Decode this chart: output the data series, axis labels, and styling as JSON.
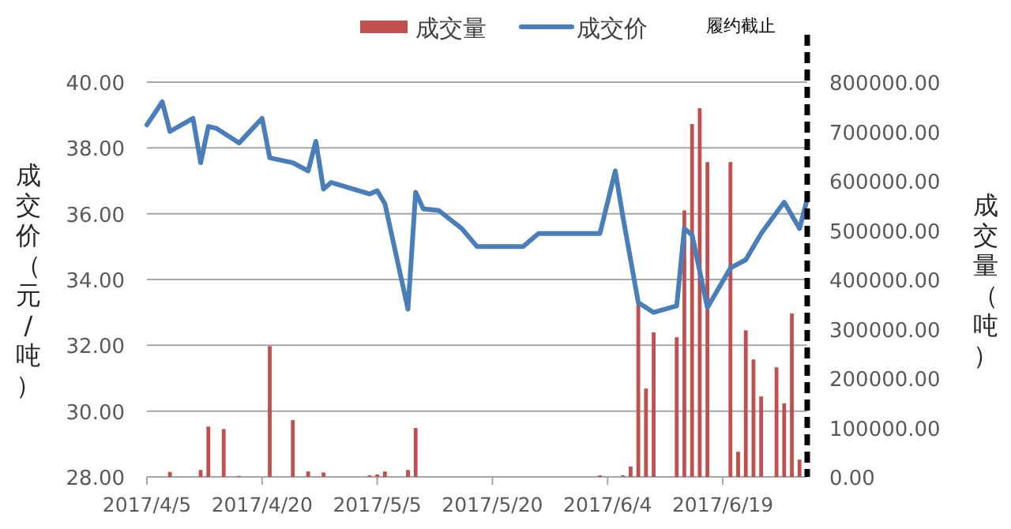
{
  "chart_data": {
    "type": "line",
    "ylabel": "成交价（元/吨）",
    "y2label": "成交量（吨）",
    "legend": "top",
    "grid": "y",
    "xlim": [
      "2017-04-05",
      "2017-06-30"
    ],
    "xticks": [
      {
        "value": "2017-04-05",
        "label": "2017/4/5"
      },
      {
        "value": "2017-04-20",
        "label": "2017/4/20"
      },
      {
        "value": "2017-05-05",
        "label": "2017/5/5"
      },
      {
        "value": "2017-05-20",
        "label": "2017/5/20"
      },
      {
        "value": "2017-06-04",
        "label": "2017/6/4"
      },
      {
        "value": "2017-06-19",
        "label": "2017/6/19"
      }
    ],
    "ylim": [
      28,
      40
    ],
    "yticks": [
      {
        "value": 28,
        "label": "28.00"
      },
      {
        "value": 30,
        "label": "30.00"
      },
      {
        "value": 32,
        "label": "32.00"
      },
      {
        "value": 34,
        "label": "34.00"
      },
      {
        "value": 36,
        "label": "36.00"
      },
      {
        "value": 38,
        "label": "38.00"
      },
      {
        "value": 40,
        "label": "40.00"
      }
    ],
    "y2lim": [
      0,
      800000
    ],
    "y2ticks": [
      {
        "value": 0,
        "label": "0.00"
      },
      {
        "value": 100000,
        "label": "100000.00"
      },
      {
        "value": 200000,
        "label": "200000.00"
      },
      {
        "value": 300000,
        "label": "300000.00"
      },
      {
        "value": 400000,
        "label": "400000.00"
      },
      {
        "value": 500000,
        "label": "500000.00"
      },
      {
        "value": 600000,
        "label": "600000.00"
      },
      {
        "value": 700000,
        "label": "700000.00"
      },
      {
        "value": 800000,
        "label": "800000.00"
      }
    ],
    "ref_lines": [
      {
        "axis": "x",
        "value": "2017-06-30",
        "label": "履约截止",
        "color": "#000000",
        "line_style": "dashed"
      }
    ],
    "series": [
      {
        "name": "成交量",
        "type": "bar",
        "axis": "y2",
        "color": "#c0504d",
        "x": [
          "2017-04-08",
          "2017-04-12",
          "2017-04-13",
          "2017-04-15",
          "2017-04-17",
          "2017-04-21",
          "2017-04-24",
          "2017-04-26",
          "2017-04-28",
          "2017-05-04",
          "2017-05-05",
          "2017-05-06",
          "2017-05-09",
          "2017-05-10",
          "2017-06-03",
          "2017-06-06",
          "2017-06-07",
          "2017-06-08",
          "2017-06-09",
          "2017-06-10",
          "2017-06-13",
          "2017-06-14",
          "2017-06-15",
          "2017-06-16",
          "2017-06-17",
          "2017-06-20",
          "2017-06-21",
          "2017-06-22",
          "2017-06-23",
          "2017-06-24",
          "2017-06-26",
          "2017-06-27",
          "2017-06-28",
          "2017-06-29"
        ],
        "values": [
          10000,
          14000,
          102000,
          97000,
          2000,
          265000,
          115000,
          11000,
          9000,
          3000,
          5000,
          11000,
          14000,
          99000,
          3000,
          3000,
          21000,
          350000,
          179000,
          293000,
          283000,
          540000,
          715000,
          747000,
          638000,
          638000,
          51000,
          297000,
          238000,
          163000,
          222000,
          149000,
          331000,
          35000
        ]
      },
      {
        "name": "成交价",
        "color": "#4a7ebb",
        "x": [
          "2017-04-05",
          "2017-04-07",
          "2017-04-08",
          "2017-04-11",
          "2017-04-12",
          "2017-04-13",
          "2017-04-14",
          "2017-04-17",
          "2017-04-20",
          "2017-04-21",
          "2017-04-24",
          "2017-04-26",
          "2017-04-27",
          "2017-04-28",
          "2017-04-29",
          "2017-05-04",
          "2017-05-05",
          "2017-05-06",
          "2017-05-09",
          "2017-05-10",
          "2017-05-11",
          "2017-05-13",
          "2017-05-16",
          "2017-05-18",
          "2017-05-24",
          "2017-05-26",
          "2017-06-03",
          "2017-06-05",
          "2017-06-06",
          "2017-06-08",
          "2017-06-10",
          "2017-06-13",
          "2017-06-14",
          "2017-06-15",
          "2017-06-17",
          "2017-06-20",
          "2017-06-22",
          "2017-06-24",
          "2017-06-27",
          "2017-06-29",
          "2017-06-30"
        ],
        "values": [
          38.7,
          39.4,
          38.5,
          38.9,
          37.55,
          38.65,
          38.6,
          38.15,
          38.9,
          37.7,
          37.55,
          37.3,
          38.2,
          36.75,
          36.95,
          36.6,
          36.7,
          36.3,
          33.1,
          36.65,
          36.15,
          36.1,
          35.55,
          35.0,
          35.0,
          35.4,
          35.4,
          37.3,
          35.9,
          33.3,
          33.0,
          33.2,
          35.55,
          35.35,
          33.15,
          34.35,
          34.6,
          35.4,
          36.35,
          35.55,
          36.45
        ]
      }
    ]
  }
}
